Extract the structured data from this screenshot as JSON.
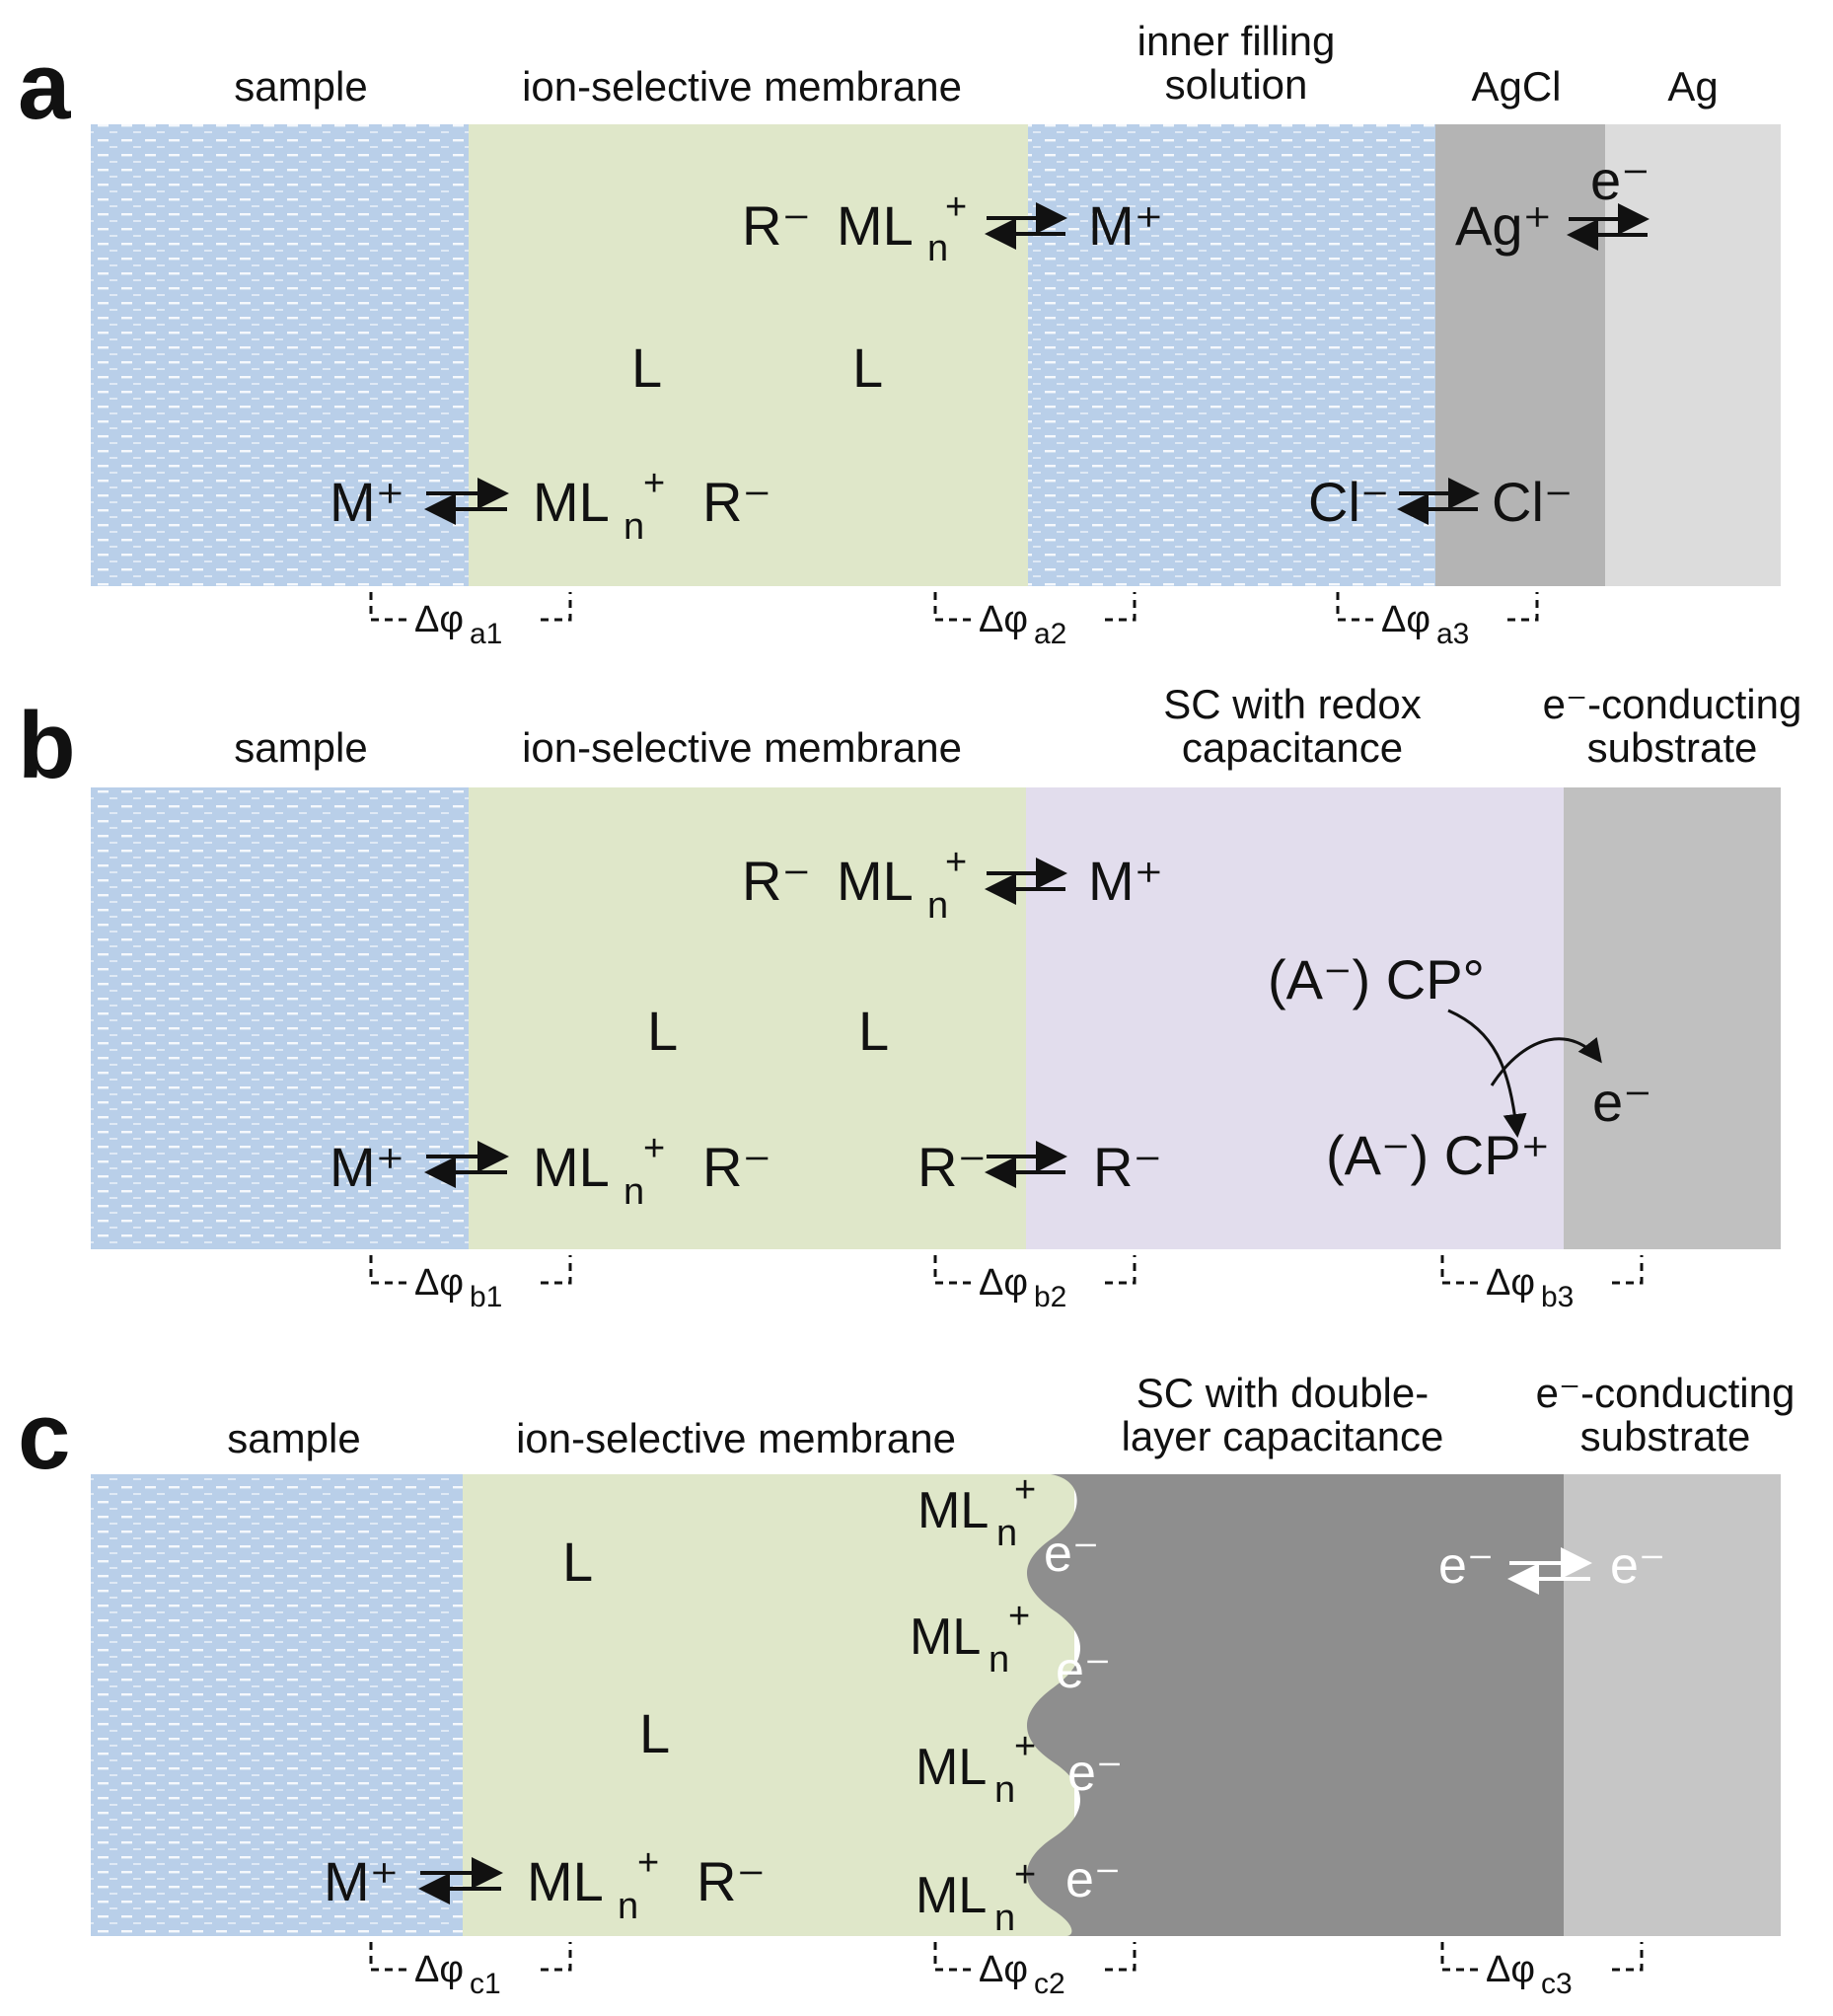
{
  "colors": {
    "sample_blue": "#b9cfe9",
    "membrane_green": "#dfe7c9",
    "redox_purple": "#e2dded",
    "agcl_gray": "#b4b4b4",
    "ag_lightgray": "#dcdcdc",
    "substrate_gray_b": "#c0c0c0",
    "double_layer_dark": "#8e8e8e",
    "substrate_gray_c": "#c6c6c6"
  },
  "panels": {
    "a": {
      "letter": "a",
      "headers": {
        "sample": "sample",
        "membrane": "ion-selective membrane",
        "inner_1": "inner filling",
        "inner_2": "solution",
        "agcl": "AgCl",
        "ag": "Ag"
      },
      "species": {
        "r_minus": "R⁻",
        "mln_top": "ML",
        "n": "n",
        "plus": "+",
        "m_plus_right": "M⁺",
        "l1": "L",
        "l2": "L",
        "m_plus_left": "M⁺",
        "mln_bottom": "ML",
        "r_minus_bottom": "R⁻",
        "ag_plus": "Ag⁺",
        "e_minus": "e⁻",
        "cl_left": "Cl⁻",
        "cl_right": "Cl⁻"
      },
      "potentials": {
        "p1": "Δφ",
        "p1_sub": "a1",
        "p2": "Δφ",
        "p2_sub": "a2",
        "p3": "Δφ",
        "p3_sub": "a3"
      }
    },
    "b": {
      "letter": "b",
      "headers": {
        "sample": "sample",
        "membrane": "ion-selective membrane",
        "sc_1": "SC with redox",
        "sc_2": "capacitance",
        "sub_1": "e⁻-conducting",
        "sub_2": "substrate"
      },
      "species": {
        "r_minus_top": "R⁻",
        "mln_top": "ML",
        "n": "n",
        "plus": "+",
        "m_plus_right": "M⁺",
        "l1": "L",
        "l2": "L",
        "m_plus_left": "M⁺",
        "mln_bottom": "ML",
        "r_minus_bottom": "R⁻",
        "r_minus_mid_left": "R⁻",
        "r_minus_mid_right": "R⁻",
        "acp_neutral": "(A⁻) CP°",
        "acp_plus": "(A⁻) CP⁺",
        "e_minus": "e⁻"
      },
      "potentials": {
        "p1": "Δφ",
        "p1_sub": "b1",
        "p2": "Δφ",
        "p2_sub": "b2",
        "p3": "Δφ",
        "p3_sub": "b3"
      }
    },
    "c": {
      "letter": "c",
      "headers": {
        "sample": "sample",
        "membrane": "ion-selective membrane",
        "sc_1": "SC with double-",
        "sc_2": "layer capacitance",
        "sub_1": "e⁻-conducting",
        "sub_2": "substrate"
      },
      "species": {
        "l1": "L",
        "l2": "L",
        "m_plus": "M⁺",
        "mln_bottom": "ML",
        "n": "n",
        "plus": "+",
        "r_minus": "R⁻",
        "mln_interface": "ML",
        "e_minus": "e⁻",
        "e_left": "e⁻",
        "e_right": "e⁻"
      },
      "potentials": {
        "p1": "Δφ",
        "p1_sub": "c1",
        "p2": "Δφ",
        "p2_sub": "c2",
        "p3": "Δφ",
        "p3_sub": "c3"
      }
    }
  }
}
